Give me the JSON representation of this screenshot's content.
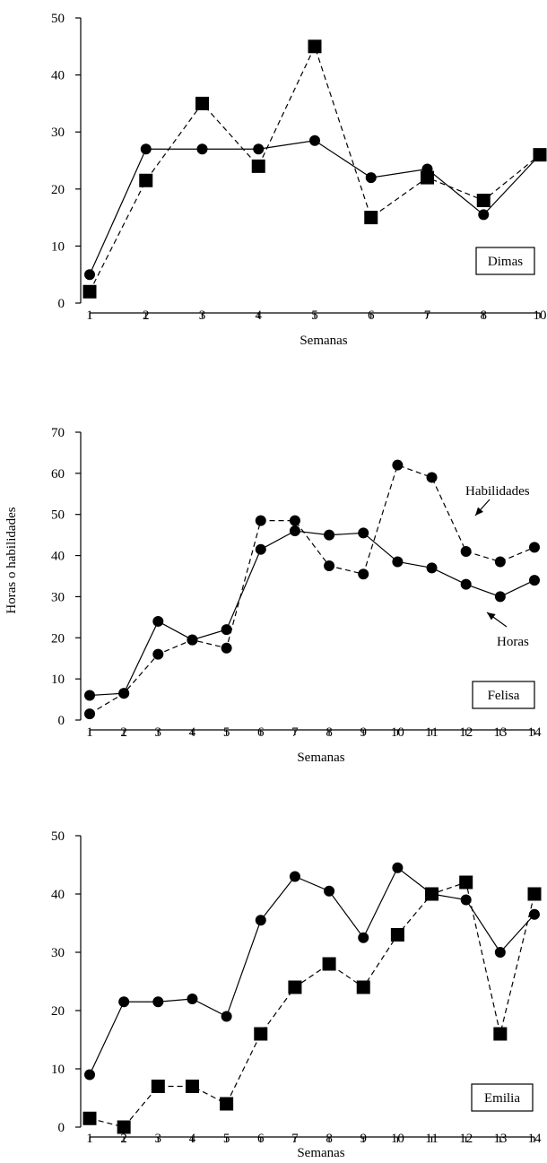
{
  "y_axis_title": "Horas o habilidades",
  "chart_data": [
    {
      "type": "line",
      "participant": "Dimas",
      "xlabel": "Semanas",
      "ylim": [
        0,
        50
      ],
      "yticks": [
        0,
        10,
        20,
        30,
        40,
        50
      ],
      "xticks": [
        1,
        2,
        3,
        4,
        5,
        6,
        7,
        8,
        10
      ],
      "xaxis_positions": [
        1,
        2,
        3,
        4,
        5,
        6,
        7,
        8,
        9
      ],
      "grid": false,
      "series": [
        {
          "marker": "circle",
          "line": "solid",
          "x": [
            1,
            2,
            3,
            4,
            5,
            6,
            7,
            8,
            10
          ],
          "y": [
            5,
            27,
            27,
            27,
            28.5,
            22,
            23.5,
            15.5,
            26
          ]
        },
        {
          "marker": "square",
          "line": "dashed",
          "x": [
            1,
            2,
            3,
            4,
            5,
            6,
            7,
            8,
            10
          ],
          "y": [
            2,
            21.5,
            35,
            24,
            45,
            15,
            22,
            18,
            26
          ]
        }
      ]
    },
    {
      "type": "line",
      "participant": "Felisa",
      "xlabel": "Semanas",
      "ylim": [
        0,
        70
      ],
      "yticks": [
        0,
        10,
        20,
        30,
        40,
        50,
        60,
        70
      ],
      "xticks": [
        1,
        2,
        3,
        4,
        5,
        6,
        7,
        8,
        9,
        10,
        11,
        12,
        13,
        14
      ],
      "xaxis_positions": [
        1,
        2,
        3,
        4,
        5,
        6,
        7,
        8,
        9,
        10,
        11,
        12,
        13,
        14
      ],
      "grid": false,
      "series": [
        {
          "name": "Horas",
          "marker": "circle",
          "line": "solid",
          "x": [
            1,
            2,
            3,
            4,
            5,
            6,
            7,
            8,
            9,
            10,
            11,
            12,
            13,
            14
          ],
          "y": [
            6,
            6.5,
            24,
            19.5,
            22,
            41.5,
            46,
            45,
            45.5,
            38.5,
            37,
            33,
            30,
            34
          ]
        },
        {
          "name": "Habilidades",
          "marker": "circle",
          "line": "dashed",
          "x": [
            1,
            2,
            3,
            4,
            5,
            6,
            7,
            8,
            9,
            10,
            11,
            12,
            13,
            14
          ],
          "y": [
            1.5,
            6.5,
            16,
            19.5,
            17.5,
            48.5,
            48.5,
            37.5,
            35.5,
            62,
            59,
            41,
            38.5,
            42
          ]
        }
      ]
    },
    {
      "type": "line",
      "participant": "Emilia",
      "xlabel": "Semanas",
      "ylim": [
        0,
        50
      ],
      "yticks": [
        0,
        10,
        20,
        30,
        40,
        50
      ],
      "xticks": [
        1,
        2,
        3,
        4,
        5,
        6,
        7,
        8,
        9,
        10,
        11,
        12,
        13,
        14
      ],
      "xaxis_positions": [
        1,
        2,
        3,
        4,
        5,
        6,
        7,
        8,
        9,
        10,
        11,
        12,
        13,
        14
      ],
      "grid": false,
      "series": [
        {
          "marker": "circle",
          "line": "solid",
          "x": [
            1,
            2,
            3,
            4,
            5,
            6,
            7,
            8,
            9,
            10,
            11,
            12,
            13,
            14
          ],
          "y": [
            9,
            21.5,
            21.5,
            22,
            19,
            35.5,
            43,
            40.5,
            32.5,
            44.5,
            40,
            39,
            30,
            36.5
          ]
        },
        {
          "marker": "square",
          "line": "dashed",
          "x": [
            1,
            2,
            3,
            4,
            5,
            6,
            7,
            8,
            9,
            10,
            11,
            12,
            13,
            14
          ],
          "y": [
            1.5,
            0,
            7,
            7,
            4,
            16,
            24,
            28,
            24,
            33,
            40,
            42,
            16,
            40
          ]
        }
      ]
    }
  ]
}
